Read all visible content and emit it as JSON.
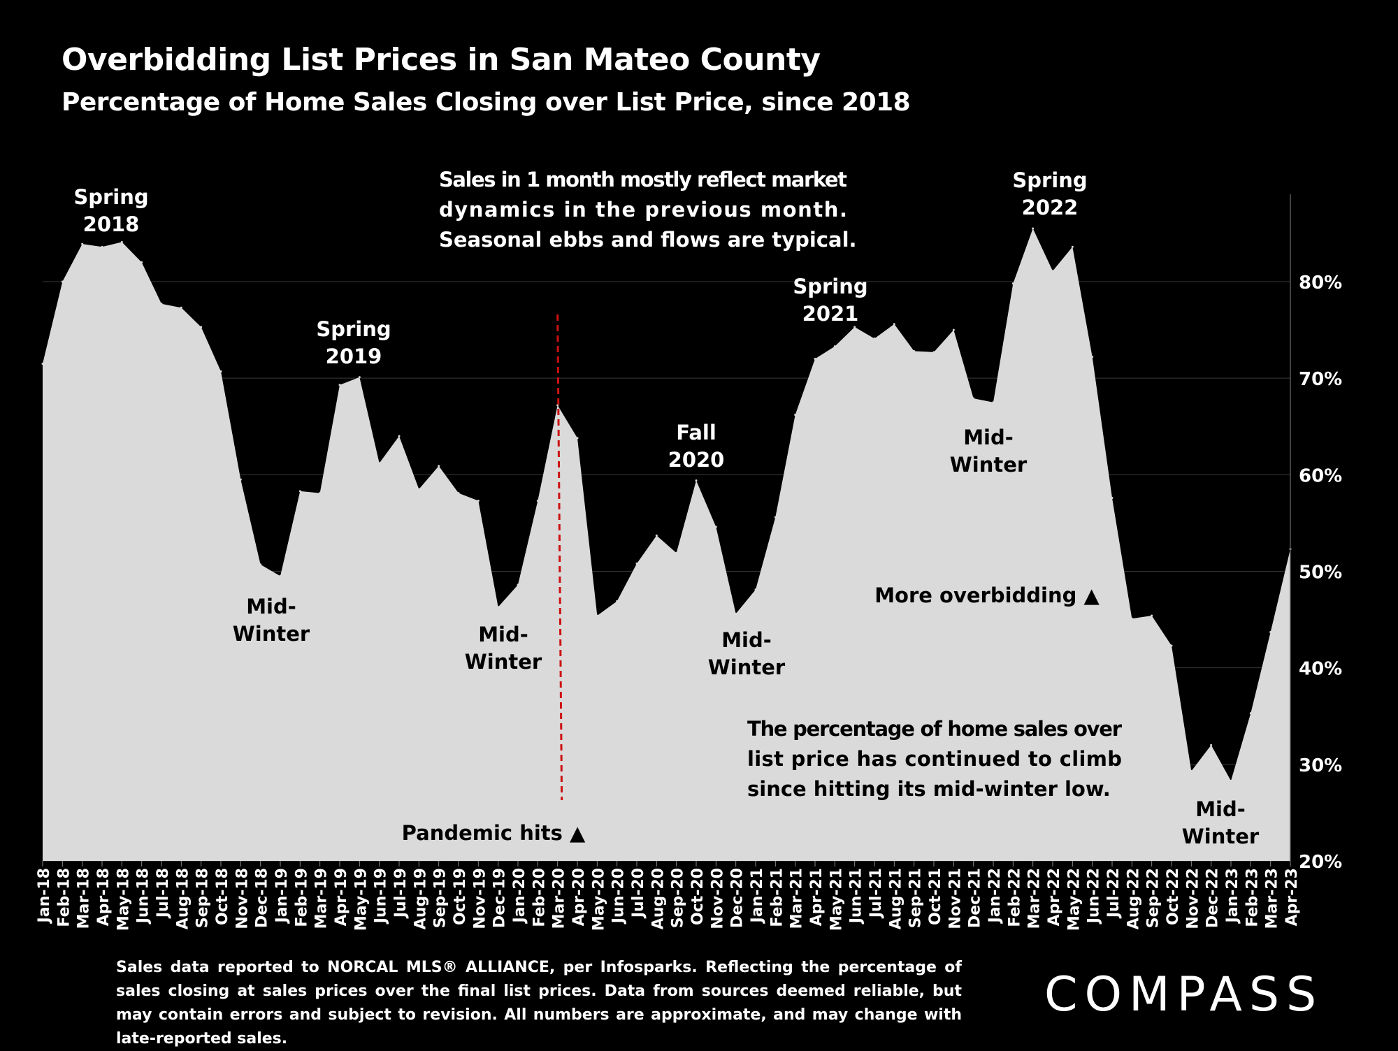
{
  "header": {
    "title": "Overbidding List Prices in San Mateo County",
    "subtitle": "Percentage of Home Sales Closing over List Price, since 2018"
  },
  "colors": {
    "background": "#000000",
    "area_fill": "#dadada",
    "marker_line": "#cc1111",
    "text_on_dark": "#ffffff",
    "text_on_fill": "#000000",
    "gridline": "#3a3a3a"
  },
  "chart_data": {
    "type": "area",
    "title": "Overbidding List Prices in San Mateo County",
    "subtitle": "Percentage of Home Sales Closing over List Price, since 2018",
    "xlabel": "",
    "ylabel": "",
    "ylim": [
      20,
      89
    ],
    "yticks": [
      20,
      30,
      40,
      50,
      60,
      70,
      80
    ],
    "ytick_labels": [
      "20%",
      "30%",
      "40%",
      "50%",
      "60%",
      "70%",
      "80%"
    ],
    "y_axis_side": "right",
    "grid": true,
    "categories": [
      "Jan-18",
      "Feb-18",
      "Mar-18",
      "Apr-18",
      "May-18",
      "Jun-18",
      "Jul-18",
      "Aug-18",
      "Sep-18",
      "Oct-18",
      "Nov-18",
      "Dec-18",
      "Jan-19",
      "Feb-19",
      "Mar-19",
      "Apr-19",
      "May-19",
      "Jun-19",
      "Jul-19",
      "Aug-19",
      "Sep-19",
      "Oct-19",
      "Nov-19",
      "Dec-19",
      "Jan-20",
      "Feb-20",
      "Mar-20",
      "Apr-20",
      "May-20",
      "Jun-20",
      "Jul-20",
      "Aug-20",
      "Sep-20",
      "Oct-20",
      "Nov-20",
      "Dec-20",
      "Jan-21",
      "Feb-21",
      "Mar-21",
      "Apr-21",
      "May-21",
      "Jun-21",
      "Jul-21",
      "Aug-21",
      "Sep-21",
      "Oct-21",
      "Nov-21",
      "Dec-21",
      "Jan-22",
      "Feb-22",
      "Mar-22",
      "Apr-22",
      "May-22",
      "Jun-22",
      "Jul-22",
      "Aug-22",
      "Sep-22",
      "Oct-22",
      "Nov-22",
      "Dec-22",
      "Jan-23",
      "Feb-23",
      "Mar-23",
      "Apr-23"
    ],
    "series": [
      {
        "values": [
          71.5,
          80.0,
          83.9,
          83.6,
          84.1,
          82.0,
          77.7,
          77.3,
          75.3,
          70.7,
          59.5,
          50.7,
          49.5,
          58.3,
          58.1,
          69.3,
          70.1,
          61.2,
          64.0,
          58.5,
          60.9,
          58.1,
          57.3,
          46.3,
          48.6,
          57.3,
          67.2,
          63.8,
          45.4,
          46.9,
          50.8,
          53.7,
          51.9,
          59.4,
          54.6,
          45.6,
          48.1,
          55.6,
          66.2,
          72.0,
          73.3,
          75.3,
          74.1,
          75.6,
          72.8,
          72.7,
          75.0,
          67.9,
          67.5,
          79.8,
          85.5,
          81.1,
          83.6,
          72.2,
          57.6,
          45.1,
          45.4,
          42.3,
          29.3,
          32.0,
          28.3,
          35.3,
          43.7,
          52.3
        ]
      }
    ],
    "annotations": [
      {
        "id": "spring-2018",
        "lines": [
          "Spring",
          "2018"
        ],
        "at": "Mar-18"
      },
      {
        "id": "spring-2019",
        "lines": [
          "Spring",
          "2019"
        ],
        "at": "May-19"
      },
      {
        "id": "mid-winter-2019",
        "lines": [
          "Mid-",
          "Winter"
        ],
        "at": "Jan-19"
      },
      {
        "id": "mid-winter-2020",
        "lines": [
          "Mid-",
          "Winter"
        ],
        "at": "Jan-20"
      },
      {
        "id": "fall-2020",
        "lines": [
          "Fall",
          "2020"
        ],
        "at": "Oct-20"
      },
      {
        "id": "mid-winter-2021",
        "lines": [
          "Mid-",
          "Winter"
        ],
        "at": "Dec-20"
      },
      {
        "id": "spring-2021",
        "lines": [
          "Spring",
          "2021"
        ],
        "at": "May-21"
      },
      {
        "id": "mid-winter-2022",
        "lines": [
          "Mid-",
          "Winter"
        ],
        "at": "Dec-21"
      },
      {
        "id": "spring-2022",
        "lines": [
          "Spring",
          "2022"
        ],
        "at": "Apr-22"
      },
      {
        "id": "mid-winter-2023",
        "lines": [
          "Mid-",
          "Winter"
        ],
        "at": "Jan-23"
      },
      {
        "id": "more-overbidding",
        "lines": [
          "More overbidding ▲"
        ],
        "at": "Dec-21"
      },
      {
        "id": "pandemic-hits",
        "lines": [
          "Pandemic hits ▲"
        ],
        "at": "Feb-20"
      }
    ],
    "pandemic_marker": {
      "at": "Mar-20"
    },
    "notes": [
      {
        "id": "note-seasonal",
        "lines": [
          "Sales in 1 month mostly reflect market",
          "dynamics in the previous month.",
          "Seasonal ebbs and flows are typical."
        ]
      },
      {
        "id": "note-climb",
        "lines": [
          "The percentage of home sales over",
          "list price has continued to climb",
          "since hitting its mid-winter low."
        ]
      }
    ]
  },
  "footer": {
    "footnote": "Sales data reported to NORCAL MLS® ALLIANCE, per Infosparks. Reflecting the percentage of sales closing at sales prices over the final list prices. Data from sources deemed reliable, but may contain errors and subject to revision. All numbers are approximate, and may change with late-reported sales.",
    "logo": "COMPASS"
  }
}
